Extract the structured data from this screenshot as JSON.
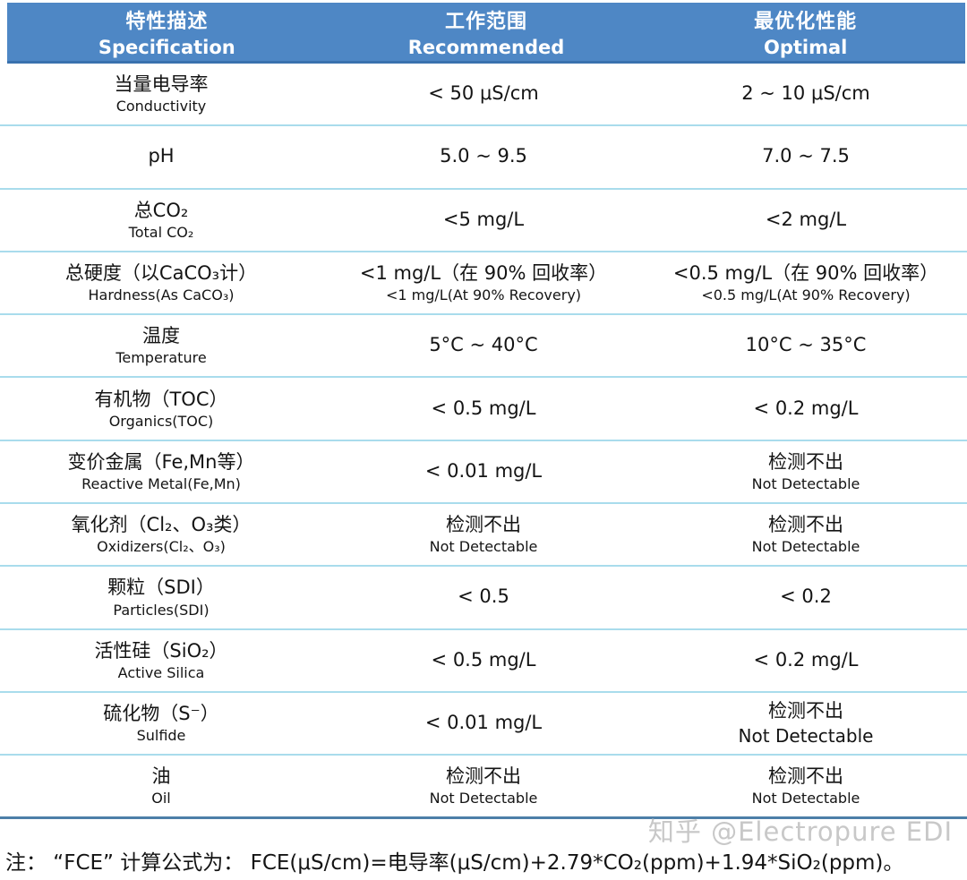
{
  "colors": {
    "header_bg": "#4e87c5",
    "header_edge": "#3a72ae",
    "header_text": "#ffffff",
    "row_divider": "#a9dcec",
    "table_bottom_border": "#4d7fa8",
    "body_text": "#141414",
    "watermark_text": "#c8c8c8"
  },
  "table": {
    "header": [
      {
        "zh": "特性描述",
        "en": "Specification"
      },
      {
        "zh": "工作范围",
        "en": "Recommended"
      },
      {
        "zh": "最优化性能",
        "en": "Optimal"
      }
    ],
    "rows": [
      {
        "spec_zh": "当量电导率",
        "spec_en": "Conductivity",
        "rec_main": "< 50 μS/cm",
        "opt_main": "2 ~ 10 μS/cm"
      },
      {
        "spec_zh": "pH",
        "rec_main": "5.0 ~ 9.5",
        "opt_main": "7.0 ~ 7.5"
      },
      {
        "spec_zh": "总CO₂",
        "spec_en": "Total CO₂",
        "rec_main": "<5 mg/L",
        "opt_main": "<2 mg/L"
      },
      {
        "spec_zh": "总硬度（以CaCO₃计）",
        "spec_en": "Hardness(As CaCO₃)",
        "rec_main": "<1 mg/L（在 90% 回收率）",
        "rec_sub": "<1 mg/L(At 90% Recovery)",
        "opt_main": "<0.5 mg/L（在 90% 回收率）",
        "opt_sub": "<0.5 mg/L(At 90% Recovery)"
      },
      {
        "spec_zh": "温度",
        "spec_en": "Temperature",
        "rec_main": "5°C ~ 40°C",
        "opt_main": "10°C ~ 35°C"
      },
      {
        "spec_zh": "有机物（TOC）",
        "spec_en": "Organics(TOC)",
        "rec_main": "< 0.5 mg/L",
        "opt_main": "< 0.2 mg/L"
      },
      {
        "spec_zh": "变价金属（Fe,Mn等）",
        "spec_en": "Reactive Metal(Fe,Mn)",
        "rec_main": "< 0.01 mg/L",
        "opt_main": "检测不出",
        "opt_sub": "Not Detectable"
      },
      {
        "spec_zh": "氧化剂（Cl₂、O₃类）",
        "spec_en": "Oxidizers(Cl₂、O₃)",
        "rec_main": "检测不出",
        "rec_sub": "Not Detectable",
        "opt_main": "检测不出",
        "opt_sub": "Not Detectable"
      },
      {
        "spec_zh": "颗粒（SDI）",
        "spec_en": "Particles(SDI)",
        "rec_main": "< 0.5",
        "opt_main": "< 0.2"
      },
      {
        "spec_zh": "活性硅（SiO₂）",
        "spec_en": "Active Silica",
        "rec_main": "< 0.5 mg/L",
        "opt_main": "< 0.2 mg/L"
      },
      {
        "spec_zh": "硫化物（S⁻）",
        "spec_en": "Sulfide",
        "rec_main": "< 0.01 mg/L",
        "opt_main": "检测不出",
        "opt_sub": "Not Detectable"
      },
      {
        "spec_zh": "油",
        "spec_en": "Oil",
        "rec_main": "检测不出",
        "rec_sub": "Not Detectable",
        "opt_main": "检测不出",
        "opt_sub": "Not Detectable"
      }
    ]
  },
  "footnote": "注： “FCE” 计算公式为： FCE(μS/cm)=电导率(μS/cm)+2.79*CO₂(ppm)+1.94*SiO₂(ppm)。",
  "watermark": "知乎 @Electropure EDI"
}
